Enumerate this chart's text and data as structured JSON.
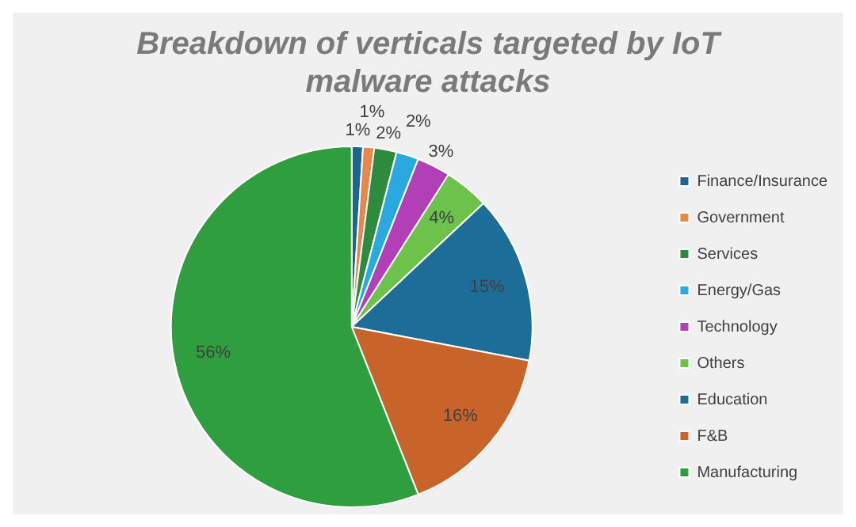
{
  "chart_data": {
    "type": "pie",
    "title": "Breakdown of verticals targeted by IoT malware attacks",
    "categories": [
      "Finance/Insurance",
      "Government",
      "Services",
      "Energy/Gas",
      "Technology",
      "Others",
      "Education",
      "F&B",
      "Manufacturing"
    ],
    "values": [
      1,
      1,
      2,
      2,
      3,
      4,
      15,
      16,
      56
    ],
    "value_labels": [
      "1%",
      "1%",
      "2%",
      "2%",
      "3%",
      "4%",
      "15%",
      "16%",
      "56%"
    ],
    "colors": [
      "#1f6391",
      "#e8874a",
      "#2e8b3e",
      "#2aa8e0",
      "#b23fb5",
      "#6cc24a",
      "#1c6e99",
      "#c8642a",
      "#2e9e3e"
    ],
    "legend": "right"
  }
}
